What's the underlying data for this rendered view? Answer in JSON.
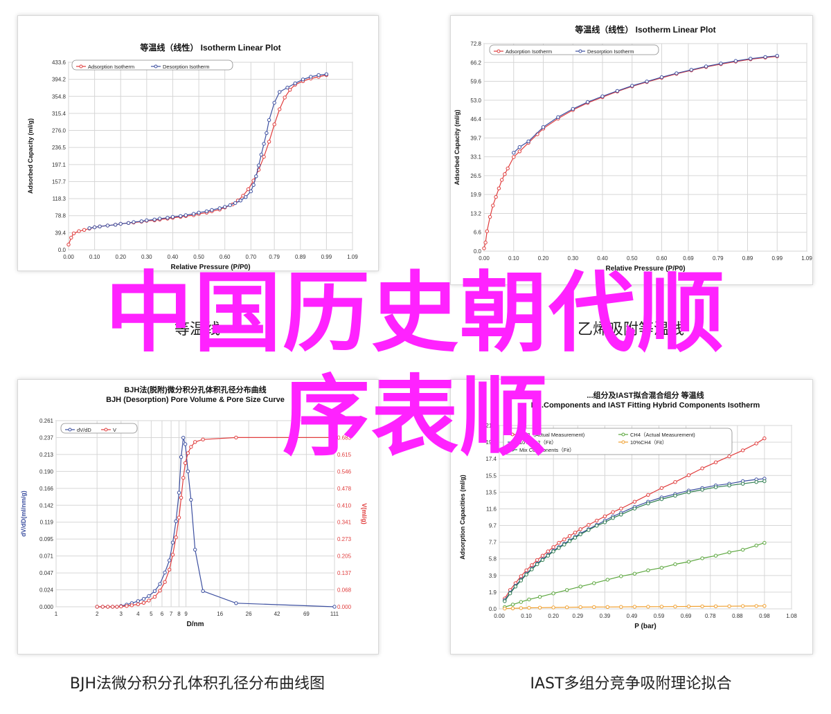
{
  "overlay": {
    "line1": "中国历史朝代顺",
    "line2": "序表顺",
    "color": "#ff22ff"
  },
  "captions": {
    "top_left": "等温线",
    "top_right": "乙烯吸附等温线",
    "bottom_left": "BJH法微分积分孔体积孔径分布曲线图",
    "bottom_right": "IAST多组分竞争吸附理论拟合"
  },
  "chart_data": [
    {
      "id": "c1",
      "type": "line",
      "title": "等温线（线性） Isotherm Linear Plot",
      "xlabel": "Relative Pressure (P/P0)",
      "ylabel": "Adsorbed Capacity (ml/g)",
      "xlim": [
        0,
        1.09
      ],
      "ylim": [
        0,
        433.6
      ],
      "xticks": [
        "0.00",
        "0.10",
        "0.20",
        "0.30",
        "0.40",
        "0.50",
        "0.60",
        "0.70",
        "0.79",
        "0.89",
        "0.99",
        "1.09"
      ],
      "yticks": [
        "0.0",
        "39.4",
        "78.8",
        "118.3",
        "157.7",
        "197.1",
        "236.5",
        "276.0",
        "315.4",
        "354.8",
        "394.2",
        "433.6"
      ],
      "grid": true,
      "legend": "top-left",
      "series": [
        {
          "name": "Adsorption Isotherm",
          "color": "#e03c3c",
          "x": [
            0.0,
            0.01,
            0.02,
            0.04,
            0.06,
            0.08,
            0.1,
            0.12,
            0.15,
            0.18,
            0.2,
            0.23,
            0.25,
            0.28,
            0.3,
            0.33,
            0.35,
            0.38,
            0.4,
            0.43,
            0.45,
            0.48,
            0.5,
            0.53,
            0.55,
            0.58,
            0.6,
            0.63,
            0.65,
            0.67,
            0.69,
            0.71,
            0.73,
            0.75,
            0.77,
            0.79,
            0.81,
            0.83,
            0.85,
            0.87,
            0.9,
            0.93,
            0.96,
            0.99
          ],
          "y": [
            12,
            28,
            38,
            43,
            46,
            49,
            52,
            54,
            56,
            58,
            60,
            62,
            63,
            65,
            67,
            68,
            70,
            72,
            74,
            76,
            78,
            80,
            83,
            86,
            89,
            93,
            98,
            105,
            114,
            125,
            140,
            160,
            185,
            215,
            250,
            290,
            325,
            352,
            370,
            382,
            390,
            396,
            400,
            404
          ]
        },
        {
          "name": "Desorption Isotherm",
          "color": "#3c4fa0",
          "x": [
            0.99,
            0.96,
            0.93,
            0.9,
            0.87,
            0.84,
            0.81,
            0.79,
            0.77,
            0.76,
            0.75,
            0.74,
            0.73,
            0.72,
            0.71,
            0.7,
            0.68,
            0.66,
            0.64,
            0.62,
            0.6,
            0.58,
            0.55,
            0.53,
            0.5,
            0.48,
            0.45,
            0.43,
            0.4,
            0.38,
            0.35,
            0.33,
            0.3,
            0.28,
            0.25,
            0.23,
            0.2,
            0.18,
            0.15,
            0.12,
            0.1,
            0.08
          ],
          "y": [
            406,
            404,
            400,
            394,
            385,
            375,
            365,
            340,
            300,
            270,
            245,
            220,
            195,
            170,
            150,
            135,
            122,
            114,
            108,
            103,
            99,
            96,
            92,
            89,
            86,
            83,
            80,
            78,
            76,
            74,
            72,
            70,
            68,
            66,
            64,
            62,
            60,
            58,
            56,
            54,
            52,
            50
          ]
        }
      ]
    },
    {
      "id": "c2",
      "type": "line",
      "title": "等温线（线性） Isotherm Linear Plot",
      "xlabel": "Relative Pressure (P/P0)",
      "ylabel": "Adsorbed Capacity (ml/g)",
      "xlim": [
        0,
        1.09
      ],
      "ylim": [
        0,
        72.8
      ],
      "xticks": [
        "0.00",
        "0.10",
        "0.20",
        "0.30",
        "0.40",
        "0.50",
        "0.60",
        "0.69",
        "0.79",
        "0.89",
        "0.99",
        "1.09"
      ],
      "yticks": [
        "0.0",
        "6.6",
        "13.2",
        "19.9",
        "26.5",
        "33.1",
        "39.7",
        "46.4",
        "53.0",
        "59.6",
        "66.2",
        "72.8"
      ],
      "grid": true,
      "legend": "top-left",
      "series": [
        {
          "name": "Adsorption Isotherm",
          "color": "#e03c3c",
          "x": [
            0.0,
            0.005,
            0.01,
            0.02,
            0.03,
            0.04,
            0.05,
            0.06,
            0.07,
            0.08,
            0.1,
            0.12,
            0.15,
            0.18,
            0.2,
            0.25,
            0.3,
            0.35,
            0.4,
            0.45,
            0.5,
            0.55,
            0.6,
            0.65,
            0.7,
            0.75,
            0.8,
            0.85,
            0.9,
            0.95,
            0.99
          ],
          "y": [
            1,
            3,
            7,
            12,
            16,
            19,
            22,
            25,
            27,
            29,
            33,
            35,
            38,
            41,
            43,
            46.5,
            49.5,
            52,
            54,
            56,
            57.8,
            59.3,
            60.8,
            62.2,
            63.4,
            64.6,
            65.6,
            66.5,
            67.3,
            67.9,
            68.3
          ]
        },
        {
          "name": "Desorption Isotherm",
          "color": "#3c4fa0",
          "x": [
            0.99,
            0.95,
            0.9,
            0.85,
            0.8,
            0.75,
            0.7,
            0.65,
            0.6,
            0.55,
            0.5,
            0.45,
            0.4,
            0.35,
            0.3,
            0.25,
            0.2,
            0.15,
            0.12,
            0.1
          ],
          "y": [
            68.5,
            68.1,
            67.5,
            66.7,
            65.8,
            64.8,
            63.6,
            62.4,
            61.0,
            59.5,
            58.0,
            56.2,
            54.3,
            52.3,
            49.9,
            47.0,
            43.5,
            38.5,
            36.5,
            34.5
          ]
        }
      ]
    },
    {
      "id": "c3",
      "type": "line",
      "title_line1": "BJH法(脱附)微分积分孔体积孔径分布曲线",
      "title_line2": "BJH (Desorption) Pore Volume & Pore Size Curve",
      "xlabel": "D/nm",
      "ylabel_left": "dV/dD(ml/nm/g)",
      "ylabel_right": "V(ml/g)",
      "xscale": "log",
      "xlim": [
        1,
        111
      ],
      "xticks": [
        "1",
        "2",
        "3",
        "4",
        "5",
        "6",
        "7",
        "8",
        "9",
        "16",
        "26",
        "42",
        "69",
        "111"
      ],
      "xtick_values": [
        1,
        2,
        3,
        4,
        5,
        6,
        7,
        8,
        9,
        16,
        26,
        42,
        69,
        111
      ],
      "ylim_left": [
        0,
        0.261
      ],
      "yticks_left": [
        "0.000",
        "0.024",
        "0.047",
        "0.071",
        "0.095",
        "0.119",
        "0.142",
        "0.166",
        "0.190",
        "0.213",
        "0.237",
        "0.261"
      ],
      "ylim_right": [
        0,
        0.751
      ],
      "yticks_right": [
        "0.000",
        "0.068",
        "0.137",
        "0.205",
        "0.273",
        "0.341",
        "0.410",
        "0.478",
        "0.546",
        "0.615",
        "0.683",
        "0.751"
      ],
      "grid": true,
      "legend": "top-left",
      "series": [
        {
          "name": "dV/dD",
          "color": "#3c4fa0",
          "axis": "left",
          "x": [
            2.0,
            2.2,
            2.4,
            2.6,
            2.8,
            3.0,
            3.3,
            3.6,
            4.0,
            4.4,
            4.8,
            5.3,
            5.8,
            6.3,
            6.8,
            7.2,
            7.6,
            8.0,
            8.3,
            8.6,
            8.9,
            9.3,
            9.8,
            10.5,
            12,
            21,
            111
          ],
          "y": [
            0.0,
            0.0,
            0.0,
            0.0,
            0.0,
            0.001,
            0.003,
            0.005,
            0.008,
            0.011,
            0.015,
            0.022,
            0.032,
            0.048,
            0.065,
            0.09,
            0.12,
            0.16,
            0.21,
            0.237,
            0.228,
            0.19,
            0.15,
            0.08,
            0.022,
            0.005,
            0.0
          ]
        },
        {
          "name": "V",
          "color": "#e03c3c",
          "axis": "right",
          "x": [
            2.0,
            2.2,
            2.4,
            2.6,
            2.8,
            3.0,
            3.3,
            3.6,
            4.0,
            4.4,
            4.8,
            5.3,
            5.8,
            6.3,
            6.8,
            7.2,
            7.6,
            8.0,
            8.3,
            8.6,
            8.9,
            9.3,
            9.8,
            10.5,
            12,
            21,
            111
          ],
          "y": [
            0.0,
            0.0,
            0.0,
            0.0,
            0.0,
            0.001,
            0.003,
            0.006,
            0.01,
            0.016,
            0.025,
            0.04,
            0.065,
            0.1,
            0.15,
            0.21,
            0.28,
            0.36,
            0.44,
            0.52,
            0.58,
            0.62,
            0.645,
            0.665,
            0.675,
            0.683,
            0.683
          ]
        }
      ]
    },
    {
      "id": "c4",
      "type": "line",
      "title_line1": "...组分及IAST拟合混合组分 等温线",
      "title_line2": "M...Components and IAST Fitting Hybrid Components Isotherm",
      "xlabel": "P (bar)",
      "ylabel": "Adsorption Capacities (ml/g)",
      "xlim": [
        0,
        1.08
      ],
      "ylim": [
        0,
        21.4
      ],
      "xticks": [
        "0.00",
        "0.10",
        "0.20",
        "0.29",
        "0.39",
        "0.49",
        "0.59",
        "0.69",
        "0.78",
        "0.88",
        "0.98",
        "1.08"
      ],
      "yticks": [
        "0.0",
        "1.9",
        "3.9",
        "5.8",
        "7.7",
        "9.7",
        "11.6",
        "13.5",
        "15.5",
        "17.4",
        "19.3",
        "21.4"
      ],
      "grid": true,
      "legend": "top-left",
      "series": [
        {
          "name": "CO2（Actual Measurement)",
          "color": "#e03c3c",
          "x": [
            0.02,
            0.04,
            0.06,
            0.08,
            0.1,
            0.12,
            0.14,
            0.16,
            0.18,
            0.2,
            0.22,
            0.24,
            0.26,
            0.28,
            0.3,
            0.33,
            0.36,
            0.39,
            0.42,
            0.45,
            0.5,
            0.55,
            0.6,
            0.65,
            0.7,
            0.75,
            0.8,
            0.85,
            0.9,
            0.95,
            0.98
          ],
          "y": [
            1.2,
            2.2,
            3.0,
            3.8,
            4.5,
            5.1,
            5.7,
            6.2,
            6.7,
            7.2,
            7.7,
            8.1,
            8.5,
            8.9,
            9.3,
            9.8,
            10.3,
            10.8,
            11.3,
            11.7,
            12.5,
            13.3,
            14.1,
            14.8,
            15.6,
            16.4,
            17.1,
            17.8,
            18.5,
            19.3,
            19.9
          ]
        },
        {
          "name": "CH4（Actual Measurement)",
          "color": "#5aa63c",
          "x": [
            0.02,
            0.05,
            0.08,
            0.11,
            0.15,
            0.2,
            0.25,
            0.3,
            0.35,
            0.4,
            0.45,
            0.5,
            0.55,
            0.6,
            0.65,
            0.7,
            0.75,
            0.8,
            0.85,
            0.9,
            0.95,
            0.98
          ],
          "y": [
            0.2,
            0.5,
            0.8,
            1.1,
            1.4,
            1.8,
            2.2,
            2.6,
            3.0,
            3.4,
            3.8,
            4.1,
            4.5,
            4.8,
            5.2,
            5.5,
            5.9,
            6.2,
            6.6,
            6.9,
            7.4,
            7.7
          ]
        },
        {
          "name": "10%CO2（Fit）",
          "color": "#3c4fa0",
          "x": [
            0.02,
            0.04,
            0.06,
            0.08,
            0.1,
            0.12,
            0.14,
            0.16,
            0.18,
            0.2,
            0.22,
            0.24,
            0.26,
            0.28,
            0.3,
            0.33,
            0.36,
            0.39,
            0.42,
            0.45,
            0.5,
            0.55,
            0.6,
            0.65,
            0.7,
            0.75,
            0.8,
            0.85,
            0.9,
            0.95,
            0.98
          ],
          "y": [
            1.0,
            1.9,
            2.7,
            3.4,
            4.1,
            4.7,
            5.3,
            5.8,
            6.3,
            6.8,
            7.2,
            7.6,
            8.0,
            8.4,
            8.8,
            9.3,
            9.8,
            10.3,
            10.8,
            11.2,
            11.9,
            12.5,
            13.0,
            13.4,
            13.8,
            14.1,
            14.4,
            14.6,
            14.9,
            15.1,
            15.2
          ]
        },
        {
          "name": "10%CH4（Fit）",
          "color": "#f0a030",
          "x": [
            0.02,
            0.05,
            0.08,
            0.11,
            0.15,
            0.2,
            0.25,
            0.3,
            0.35,
            0.4,
            0.45,
            0.5,
            0.55,
            0.6,
            0.65,
            0.7,
            0.75,
            0.8,
            0.85,
            0.9,
            0.95,
            0.98
          ],
          "y": [
            0.03,
            0.06,
            0.09,
            0.12,
            0.14,
            0.16,
            0.18,
            0.2,
            0.21,
            0.22,
            0.23,
            0.24,
            0.25,
            0.26,
            0.27,
            0.28,
            0.29,
            0.3,
            0.31,
            0.32,
            0.33,
            0.34
          ]
        },
        {
          "name": "Mix Components（Fit）",
          "color": "#2e7d4f",
          "x": [
            0.02,
            0.04,
            0.06,
            0.08,
            0.1,
            0.12,
            0.14,
            0.16,
            0.18,
            0.2,
            0.22,
            0.24,
            0.26,
            0.28,
            0.3,
            0.33,
            0.36,
            0.39,
            0.42,
            0.45,
            0.5,
            0.55,
            0.6,
            0.65,
            0.7,
            0.75,
            0.8,
            0.85,
            0.9,
            0.95,
            0.98
          ],
          "y": [
            0.9,
            1.8,
            2.6,
            3.3,
            4.0,
            4.6,
            5.2,
            5.7,
            6.2,
            6.7,
            7.1,
            7.5,
            7.9,
            8.3,
            8.7,
            9.2,
            9.7,
            10.1,
            10.6,
            11.0,
            11.7,
            12.3,
            12.8,
            13.2,
            13.6,
            13.9,
            14.2,
            14.4,
            14.6,
            14.8,
            14.9
          ]
        }
      ]
    }
  ]
}
